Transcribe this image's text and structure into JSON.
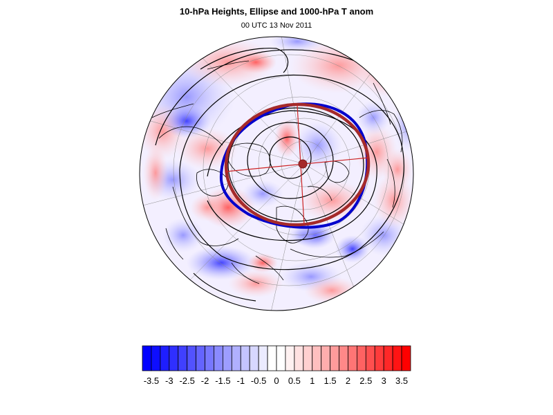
{
  "figure": {
    "title": "10-hPa Heights, Ellipse and 1000-hPa T anom",
    "subtitle": "00 UTC 13 Nov 2011"
  },
  "map": {
    "projection": "north-polar-orthographic",
    "field": "1000-hPa T anom",
    "contours": "10-hPa heights",
    "ellipse_colors": {
      "fitted_ellipse": "#a52a2a",
      "vortex_edge": "#0000cc",
      "axes": "#cc2222"
    }
  },
  "colorbar": {
    "levels": [
      -3.5,
      -3.25,
      -3,
      -2.75,
      -2.5,
      -2.25,
      -2,
      -1.75,
      -1.5,
      -1.25,
      -1,
      -0.75,
      -0.5,
      -0.25,
      0,
      0.25,
      0.5,
      0.75,
      1,
      1.25,
      1.5,
      1.75,
      2,
      2.25,
      2.5,
      2.75,
      3,
      3.25,
      3.5
    ],
    "labels": [
      "-3.5",
      "-3",
      "-2.5",
      "-2",
      "-1.5",
      "-1",
      "-0.5",
      "0",
      "0.5",
      "1",
      "1.5",
      "2",
      "2.5",
      "3",
      "3.5"
    ],
    "colors": {
      "min": "#0000ff",
      "zero": "#ffffff",
      "max": "#ff0000"
    }
  }
}
